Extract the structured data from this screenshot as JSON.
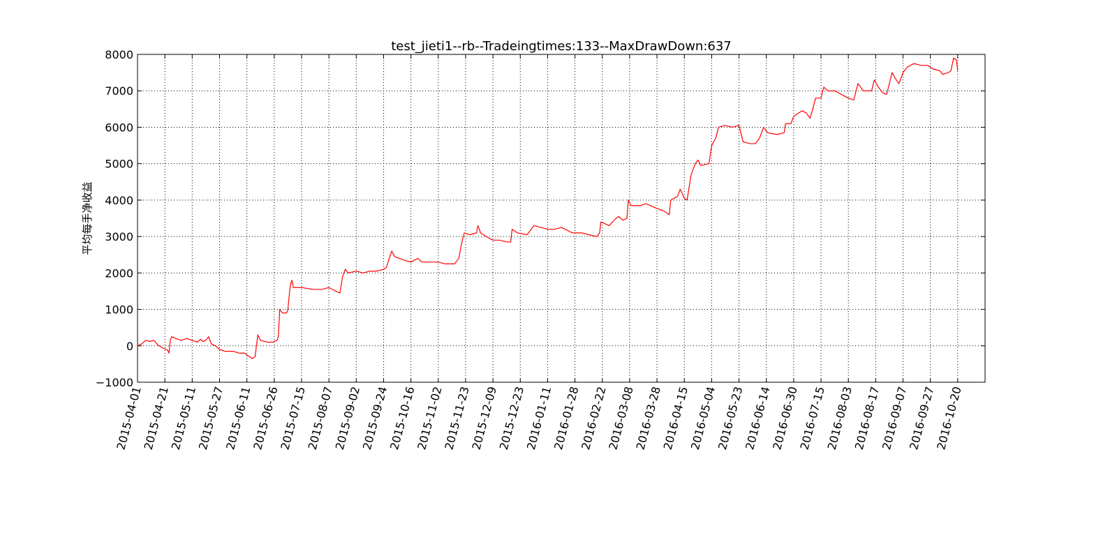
{
  "chart_data": {
    "type": "line",
    "title": "test_jieti1--rb--Tradeingtimes:133--MaxDrawDown:637",
    "ylabel": "平均每手净收益",
    "color": "#ff0000",
    "grid": true,
    "xlim": [
      0,
      620
    ],
    "xticks": [
      {
        "value": 0,
        "label": "2015-04-01"
      },
      {
        "value": 20,
        "label": "2015-04-21"
      },
      {
        "value": 40,
        "label": "2015-05-11"
      },
      {
        "value": 60,
        "label": "2015-05-27"
      },
      {
        "value": 80,
        "label": "2015-06-11"
      },
      {
        "value": 100,
        "label": "2015-06-26"
      },
      {
        "value": 120,
        "label": "2015-07-15"
      },
      {
        "value": 140,
        "label": "2015-08-07"
      },
      {
        "value": 160,
        "label": "2015-09-02"
      },
      {
        "value": 180,
        "label": "2015-09-24"
      },
      {
        "value": 200,
        "label": "2015-10-16"
      },
      {
        "value": 220,
        "label": "2015-11-02"
      },
      {
        "value": 240,
        "label": "2015-11-23"
      },
      {
        "value": 260,
        "label": "2015-12-09"
      },
      {
        "value": 280,
        "label": "2015-12-23"
      },
      {
        "value": 300,
        "label": "2016-01-11"
      },
      {
        "value": 320,
        "label": "2016-01-28"
      },
      {
        "value": 340,
        "label": "2016-02-22"
      },
      {
        "value": 360,
        "label": "2016-03-08"
      },
      {
        "value": 380,
        "label": "2016-03-28"
      },
      {
        "value": 400,
        "label": "2016-04-15"
      },
      {
        "value": 420,
        "label": "2016-05-04"
      },
      {
        "value": 440,
        "label": "2016-05-23"
      },
      {
        "value": 460,
        "label": "2016-06-14"
      },
      {
        "value": 480,
        "label": "2016-06-30"
      },
      {
        "value": 500,
        "label": "2016-07-15"
      },
      {
        "value": 520,
        "label": "2016-08-03"
      },
      {
        "value": 540,
        "label": "2016-08-17"
      },
      {
        "value": 560,
        "label": "2016-09-07"
      },
      {
        "value": 580,
        "label": "2016-09-27"
      },
      {
        "value": 600,
        "label": "2016-10-20"
      }
    ],
    "ylim": [
      -1000,
      8000
    ],
    "yticks": [
      {
        "value": -1000,
        "label": "−1000"
      },
      0,
      1000,
      2000,
      3000,
      4000,
      5000,
      6000,
      7000,
      8000
    ],
    "x": [
      0,
      3,
      6,
      9,
      12,
      15,
      18,
      22,
      23,
      24,
      25,
      28,
      32,
      36,
      40,
      44,
      46,
      48,
      50,
      52,
      54,
      57,
      60,
      64,
      70,
      74,
      78,
      82,
      84,
      86,
      88,
      90,
      95,
      99,
      102,
      103,
      104,
      106,
      109,
      110,
      111,
      112,
      113,
      114,
      120,
      128,
      135,
      140,
      145,
      148,
      150,
      152,
      154,
      160,
      165,
      170,
      175,
      180,
      182,
      185,
      186,
      188,
      195,
      200,
      205,
      208,
      215,
      220,
      225,
      232,
      235,
      237,
      239,
      243,
      248,
      249,
      251,
      255,
      260,
      265,
      270,
      273,
      274,
      278,
      285,
      288,
      290,
      295,
      300,
      305,
      310,
      313,
      318,
      325,
      330,
      336,
      338,
      339,
      345,
      350,
      352,
      355,
      358,
      359,
      361,
      368,
      372,
      378,
      385,
      389,
      390,
      395,
      397,
      400,
      402,
      405,
      408,
      410,
      412,
      418,
      420,
      423,
      425,
      430,
      435,
      440,
      443,
      448,
      452,
      455,
      458,
      461,
      468,
      473,
      474,
      478,
      480,
      486,
      489,
      492,
      494,
      496,
      500,
      502,
      505,
      510,
      515,
      520,
      524,
      527,
      531,
      537,
      539,
      542,
      545,
      548,
      550,
      552,
      555,
      557,
      560,
      563,
      568,
      573,
      578,
      582,
      587,
      589,
      593,
      595,
      597,
      599,
      600
    ],
    "values": [
      0,
      50,
      150,
      120,
      150,
      20,
      -50,
      -120,
      -200,
      150,
      250,
      200,
      150,
      200,
      150,
      100,
      180,
      120,
      150,
      250,
      50,
      0,
      -100,
      -150,
      -150,
      -200,
      -200,
      -300,
      -350,
      -300,
      300,
      150,
      100,
      100,
      150,
      250,
      1000,
      900,
      900,
      1000,
      1400,
      1700,
      1800,
      1600,
      1600,
      1550,
      1550,
      1600,
      1500,
      1450,
      1900,
      2100,
      2000,
      2050,
      2000,
      2050,
      2050,
      2100,
      2150,
      2500,
      2600,
      2450,
      2350,
      2300,
      2400,
      2300,
      2300,
      2300,
      2250,
      2250,
      2400,
      2800,
      3100,
      3050,
      3100,
      3300,
      3100,
      3000,
      2900,
      2900,
      2850,
      2850,
      3200,
      3100,
      3050,
      3200,
      3300,
      3250,
      3200,
      3200,
      3250,
      3200,
      3100,
      3100,
      3050,
      3000,
      3100,
      3400,
      3300,
      3500,
      3550,
      3450,
      3500,
      4000,
      3850,
      3850,
      3900,
      3800,
      3700,
      3600,
      4000,
      4100,
      4300,
      4050,
      4000,
      4700,
      5000,
      5100,
      4950,
      5000,
      5500,
      5700,
      6000,
      6050,
      6000,
      6050,
      5600,
      5550,
      5550,
      5700,
      6000,
      5850,
      5800,
      5850,
      6100,
      6100,
      6300,
      6450,
      6400,
      6250,
      6500,
      6800,
      6800,
      7100,
      7000,
      7000,
      6900,
      6800,
      6750,
      7200,
      7000,
      7000,
      7300,
      7100,
      6950,
      6900,
      7200,
      7500,
      7300,
      7200,
      7500,
      7650,
      7750,
      7700,
      7700,
      7600,
      7550,
      7450,
      7500,
      7550,
      7900,
      7850,
      7550
    ]
  }
}
